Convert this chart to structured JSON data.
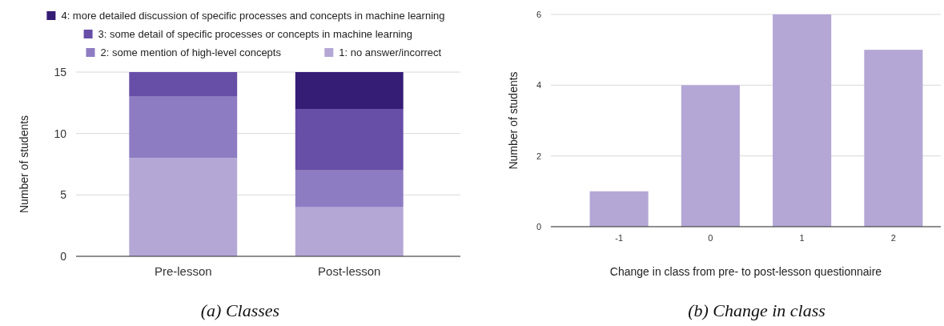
{
  "chart_data": [
    {
      "type": "bar",
      "stacked": true,
      "categories": [
        "Pre-lesson",
        "Post-lesson"
      ],
      "ylabel": "Number of students",
      "ylim": [
        0,
        15
      ],
      "yticks": [
        0,
        5,
        10,
        15
      ],
      "grid": "y",
      "legend": "top",
      "series": [
        {
          "name": "1: no answer/incorrect",
          "color": "#b4a7d6",
          "values": [
            8,
            4
          ]
        },
        {
          "name": "2: some mention of high-level concepts",
          "color": "#8e7cc3",
          "values": [
            5,
            3
          ]
        },
        {
          "name": "3: some detail of specific processes or concepts in machine learning",
          "color": "#674ea7",
          "values": [
            2,
            5
          ]
        },
        {
          "name": "4: more detailed discussion of specific processes and concepts in machine learning",
          "color": "#351c75",
          "values": [
            0,
            3
          ]
        }
      ],
      "annotations": [
        "(a) Classes"
      ]
    },
    {
      "type": "bar",
      "categories": [
        "-1",
        "0",
        "1",
        "2"
      ],
      "xlabel": "Change in class from pre- to post-lesson questionnaire",
      "ylabel": "Number of students",
      "ylim": [
        0,
        6
      ],
      "yticks": [
        0,
        2,
        4,
        6
      ],
      "grid": "y",
      "legend": false,
      "series": [
        {
          "color": "#b4a7d6",
          "values": [
            1,
            4,
            6,
            5
          ]
        }
      ],
      "annotations": [
        "(b) Change in class"
      ]
    }
  ]
}
